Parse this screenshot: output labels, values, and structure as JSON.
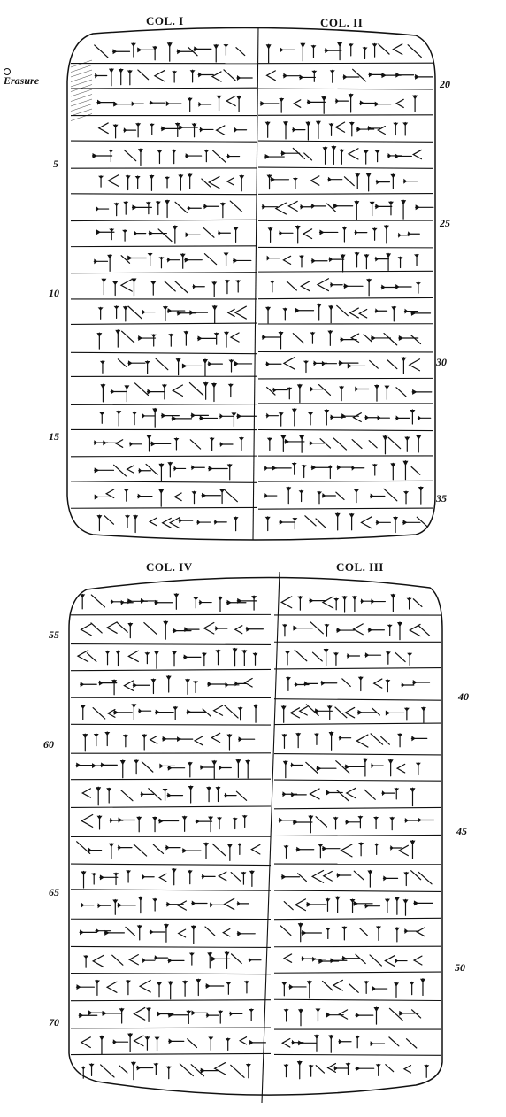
{
  "obverse": {
    "columns": [
      {
        "label": "COL. I",
        "line_numbers": [
          "5",
          "10",
          "15"
        ]
      },
      {
        "label": "COL. II",
        "line_numbers": [
          "20",
          "25",
          "30",
          "35"
        ]
      }
    ],
    "note": "Erasure"
  },
  "reverse": {
    "columns": [
      {
        "label": "COL. IV",
        "line_numbers": [
          "55",
          "60",
          "65",
          "70"
        ]
      },
      {
        "label": "COL. III",
        "line_numbers": [
          "40",
          "45",
          "50"
        ]
      }
    ]
  },
  "icons": {
    "erasure_mark": "small-circle-icon"
  },
  "colors": {
    "ink": "#111111",
    "paper": "#ffffff"
  }
}
